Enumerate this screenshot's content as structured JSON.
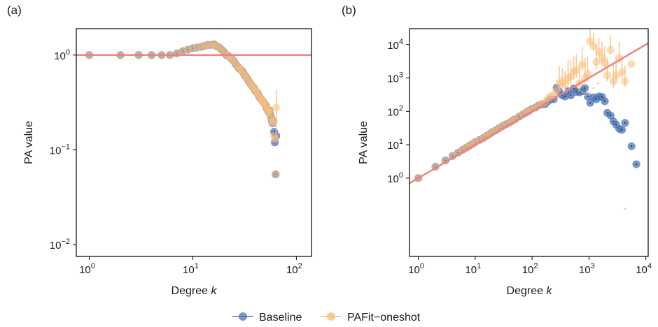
{
  "colors": {
    "baseline": "#4a74b4",
    "pafit": "#fbbf7e",
    "reference_line": "#f08080",
    "axis": "#000000"
  },
  "legend": {
    "placement": "bottom-center",
    "items": [
      "Baseline",
      "PAFit−oneshot"
    ]
  },
  "chart_data": [
    {
      "panel_label": "(a)",
      "type": "scatter",
      "xlabel": "Degree",
      "xlabel_var": "k",
      "ylabel": "PA value",
      "x_scale": "log",
      "y_scale": "log",
      "xlim": [
        0.75,
        140
      ],
      "ylim": [
        0.0075,
        1.9
      ],
      "x_ticks": [
        {
          "value": 1,
          "base": "10",
          "exp": "0"
        },
        {
          "value": 10,
          "base": "10",
          "exp": "1"
        },
        {
          "value": 100,
          "base": "10",
          "exp": "2"
        }
      ],
      "y_ticks": [
        {
          "value": 0.01,
          "base": "10",
          "exp": "−2"
        },
        {
          "value": 0.1,
          "base": "10",
          "exp": "−1"
        },
        {
          "value": 1,
          "base": "10",
          "exp": "0"
        }
      ],
      "reference_line": {
        "type": "horizontal",
        "y": 1
      },
      "series": [
        {
          "name": "Baseline",
          "x": [
            1,
            2,
            3,
            4,
            5,
            6,
            7,
            8,
            9,
            10,
            11,
            12,
            13,
            14,
            15,
            16,
            17,
            18,
            19,
            20,
            21,
            22,
            23,
            24,
            25,
            26,
            27,
            28,
            29,
            30,
            31,
            32,
            33,
            34,
            35,
            36,
            37,
            38,
            39,
            40,
            41,
            42,
            43,
            44,
            45,
            46,
            47,
            48,
            49,
            50,
            51,
            52,
            53,
            54,
            55,
            56,
            57,
            58,
            59,
            60,
            61,
            62,
            63,
            64
          ],
          "y": [
            1.0,
            1.0,
            1.0,
            1.0,
            1.0,
            1.0,
            1.04,
            1.1,
            1.14,
            1.18,
            1.2,
            1.22,
            1.25,
            1.28,
            1.28,
            1.3,
            1.24,
            1.2,
            1.14,
            1.08,
            1.0,
            0.98,
            0.94,
            0.9,
            0.86,
            0.8,
            0.76,
            0.72,
            0.7,
            0.68,
            0.64,
            0.6,
            0.58,
            0.55,
            0.52,
            0.5,
            0.48,
            0.46,
            0.45,
            0.42,
            0.41,
            0.4,
            0.38,
            0.36,
            0.35,
            0.34,
            0.33,
            0.32,
            0.31,
            0.3,
            0.29,
            0.27,
            0.26,
            0.25,
            0.26,
            0.24,
            0.22,
            0.2,
            0.19,
            0.2,
            0.155,
            0.12,
            0.055,
            0.14
          ]
        },
        {
          "name": "PAFit−oneshot",
          "x": [
            1,
            2,
            3,
            4,
            5,
            6,
            7,
            8,
            9,
            10,
            11,
            12,
            13,
            14,
            15,
            16,
            17,
            18,
            19,
            20,
            21,
            22,
            23,
            24,
            25,
            26,
            27,
            28,
            29,
            30,
            31,
            32,
            33,
            34,
            35,
            36,
            37,
            38,
            39,
            40,
            41,
            42,
            43,
            44,
            45,
            46,
            47,
            48,
            49,
            50,
            51,
            52,
            53,
            54,
            55,
            56,
            57,
            58,
            59,
            60,
            61,
            62,
            63,
            64
          ],
          "y": [
            1.0,
            1.0,
            1.0,
            1.0,
            1.0,
            1.0,
            1.04,
            1.1,
            1.14,
            1.18,
            1.2,
            1.22,
            1.25,
            1.28,
            1.28,
            1.3,
            1.24,
            1.2,
            1.14,
            1.08,
            1.0,
            0.98,
            0.94,
            0.9,
            0.86,
            0.8,
            0.76,
            0.72,
            0.7,
            0.68,
            0.64,
            0.6,
            0.58,
            0.55,
            0.52,
            0.5,
            0.48,
            0.46,
            0.45,
            0.42,
            0.41,
            0.4,
            0.38,
            0.36,
            0.35,
            0.34,
            0.33,
            0.32,
            0.31,
            0.3,
            0.29,
            0.27,
            0.26,
            0.25,
            0.26,
            0.24,
            0.22,
            0.2,
            0.19,
            0.2,
            0.14,
            0.13,
            0.055,
            0.28
          ],
          "error": [
            0,
            0,
            0,
            0,
            0,
            0,
            0,
            0,
            0,
            0,
            0,
            0,
            0,
            0,
            0,
            0,
            0,
            0,
            0,
            0,
            0,
            0,
            0,
            0,
            0,
            0,
            0,
            0,
            0,
            0,
            0,
            0,
            0,
            0,
            0,
            0,
            0,
            0,
            0,
            0,
            0,
            0,
            0,
            0,
            0,
            0,
            0,
            0,
            0,
            0,
            0,
            0,
            0,
            0,
            0,
            0,
            0,
            0,
            0,
            0,
            0,
            0,
            0,
            0.15
          ]
        }
      ]
    },
    {
      "panel_label": "(b)",
      "type": "scatter",
      "xlabel": "Degree",
      "xlabel_var": "k",
      "ylabel": "PA value",
      "x_scale": "log",
      "y_scale": "log",
      "xlim": [
        0.7,
        11000
      ],
      "ylim": [
        0.0045,
        30000
      ],
      "x_ticks": [
        {
          "value": 1,
          "base": "10",
          "exp": "0"
        },
        {
          "value": 10,
          "base": "10",
          "exp": "1"
        },
        {
          "value": 100,
          "base": "10",
          "exp": "2"
        },
        {
          "value": 1000,
          "base": "10",
          "exp": "3"
        },
        {
          "value": 10000,
          "base": "10",
          "exp": "4"
        }
      ],
      "y_ticks": [
        {
          "value": 1,
          "base": "10",
          "exp": "0"
        },
        {
          "value": 10,
          "base": "10",
          "exp": "1"
        },
        {
          "value": 100,
          "base": "10",
          "exp": "2"
        },
        {
          "value": 1000,
          "base": "10",
          "exp": "3"
        },
        {
          "value": 10000,
          "base": "10",
          "exp": "4"
        }
      ],
      "reference_line": {
        "type": "power",
        "coef": 1,
        "exponent": 1
      },
      "series": [
        {
          "name": "Baseline",
          "x": [
            1,
            2,
            3,
            4,
            5,
            6,
            7,
            8,
            9,
            10,
            12,
            14,
            16,
            18,
            20,
            23,
            26,
            30,
            35,
            40,
            45,
            50,
            60,
            70,
            80,
            90,
            100,
            115,
            130,
            150,
            170,
            190,
            210,
            240,
            270,
            300,
            340,
            380,
            430,
            480,
            540,
            600,
            680,
            760,
            850,
            950,
            1050,
            1200,
            1350,
            1500,
            1700,
            1900,
            2100,
            2400,
            2700,
            3000,
            3400,
            3800,
            4300,
            5600,
            6800
          ],
          "y": [
            1.0,
            2.2,
            3.4,
            4.6,
            5.8,
            7.0,
            8.2,
            9.4,
            10.6,
            12,
            14,
            16,
            18.5,
            21,
            24,
            27,
            31,
            36,
            41,
            46,
            52,
            58,
            70,
            82,
            94,
            106,
            120,
            130,
            150,
            160,
            165,
            200,
            230,
            230,
            510,
            380,
            300,
            280,
            400,
            300,
            480,
            380,
            370,
            400,
            500,
            280,
            180,
            260,
            230,
            280,
            270,
            200,
            90,
            75,
            50,
            40,
            30,
            28,
            45,
            9,
            2.6
          ]
        },
        {
          "name": "PAFit−oneshot",
          "x": [
            1,
            2,
            3,
            4,
            5,
            6,
            7,
            8,
            9,
            10,
            12,
            14,
            16,
            18,
            20,
            23,
            26,
            30,
            35,
            40,
            45,
            50,
            60,
            70,
            80,
            90,
            100,
            115,
            130,
            150,
            170,
            190,
            210,
            240,
            270,
            300,
            340,
            380,
            430,
            480,
            540,
            600,
            680,
            760,
            850,
            950,
            1050,
            1200,
            1350,
            1500,
            1700,
            1900,
            2100,
            2400,
            2700,
            3000,
            3400,
            3800,
            4300,
            5600
          ],
          "y": [
            1.0,
            2.2,
            3.4,
            4.6,
            5.8,
            7.0,
            8.2,
            9.4,
            10.6,
            12,
            14,
            16,
            18.5,
            21,
            24,
            27,
            31,
            36,
            41,
            46,
            52,
            58,
            70,
            82,
            94,
            106,
            120,
            130,
            150,
            170,
            190,
            240,
            280,
            310,
            420,
            700,
            800,
            650,
            1000,
            1100,
            1500,
            1700,
            700,
            2500,
            1000,
            1300,
            12500,
            9000,
            3000,
            6000,
            4000,
            2800,
            1200,
            7000,
            800,
            1200,
            4000,
            1500,
            800,
            2600
          ],
          "error_high": [
            0,
            0,
            0,
            0,
            0,
            0,
            0,
            0,
            0,
            0,
            0,
            0,
            0,
            0,
            0,
            0,
            0,
            0,
            0,
            0,
            0,
            0,
            0,
            0,
            0,
            0,
            0,
            0,
            0,
            0,
            0,
            0,
            0,
            0,
            0,
            1500,
            1200,
            1000,
            2500,
            2200,
            3000,
            3500,
            1500,
            6000,
            3000,
            3000,
            17000,
            14000,
            7000,
            10000,
            8000,
            6000,
            3000,
            12000,
            2000,
            3000,
            8000,
            3000,
            1500,
            0
          ],
          "error_low": [
            0,
            0,
            0,
            0,
            0,
            0,
            0,
            0,
            0,
            0,
            0,
            0,
            0,
            0,
            0,
            0,
            0,
            0,
            0,
            0,
            0,
            0,
            0,
            0,
            0,
            0,
            0,
            0,
            0,
            0,
            0,
            0,
            0,
            0,
            0,
            300,
            350,
            250,
            400,
            500,
            600,
            700,
            300,
            900,
            400,
            500,
            3000,
            2500,
            1200,
            2000,
            1500,
            1000,
            400,
            2000,
            300,
            400,
            1200,
            500,
            250,
            0
          ]
        }
      ],
      "small_points": {
        "x": [
          620,
          680,
          760,
          850,
          1000,
          1200,
          1450,
          4300
        ],
        "y": [
          550,
          420,
          380,
          300,
          340,
          500,
          700,
          0.12
        ]
      }
    }
  ]
}
